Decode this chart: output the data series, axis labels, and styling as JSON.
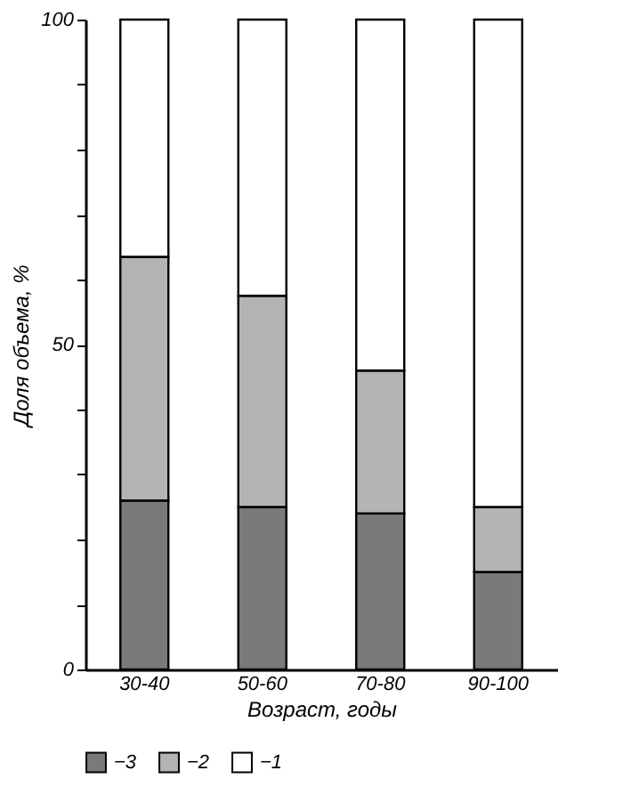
{
  "chart_data": {
    "type": "bar",
    "stacked": true,
    "categories": [
      "30-40",
      "50-60",
      "70-80",
      "90-100"
    ],
    "xlabel": "Возраст, годы",
    "ylabel": "Доля объема, %",
    "series": [
      {
        "name": "−3",
        "color": "#7a7a7a",
        "values": [
          26,
          25,
          24,
          15
        ]
      },
      {
        "name": "−2",
        "color": "#b4b4b4",
        "values": [
          37.5,
          32.5,
          22,
          10
        ]
      },
      {
        "name": "−1",
        "color": "#ffffff",
        "values": [
          36.5,
          42.5,
          54,
          75
        ]
      }
    ],
    "ylim": [
      0,
      100
    ],
    "yticks": [
      0,
      {
        "value": 10,
        "label": null
      },
      {
        "value": 20,
        "label": null
      },
      {
        "value": 30,
        "label": null
      },
      {
        "value": 40,
        "label": null
      },
      50,
      {
        "value": 60,
        "label": null
      },
      {
        "value": 70,
        "label": null
      },
      {
        "value": 80,
        "label": null
      },
      {
        "value": 90,
        "label": null
      },
      100
    ],
    "grid": false,
    "legend": "bottom left"
  }
}
